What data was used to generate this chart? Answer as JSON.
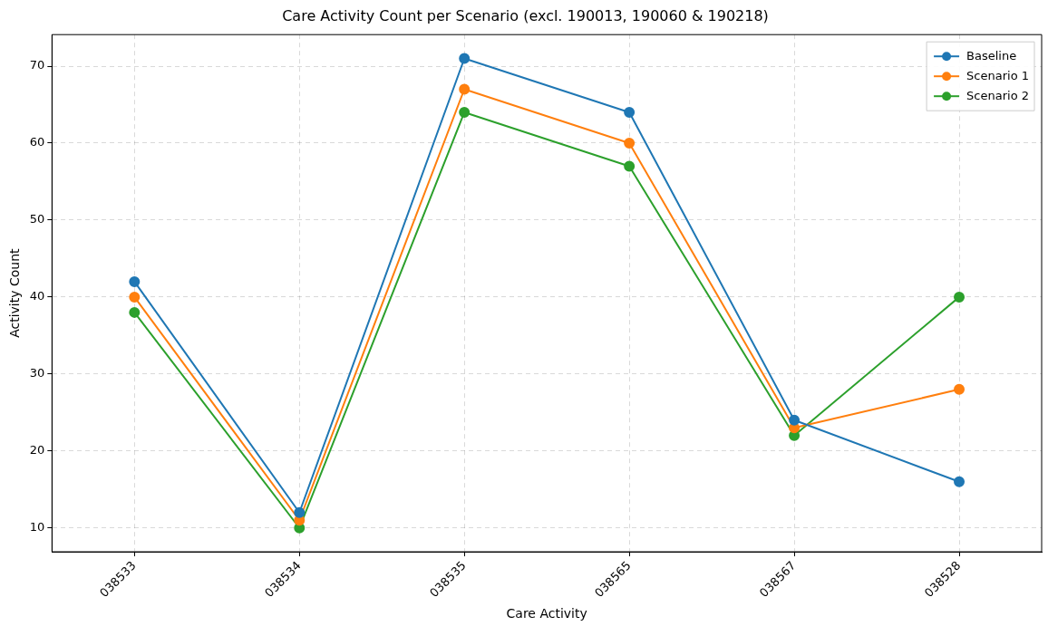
{
  "chart_data": {
    "type": "line",
    "title": "Care Activity Count per Scenario (excl. 190013, 190060 & 190218)",
    "xlabel": "Care Activity",
    "ylabel": "Activity Count",
    "categories": [
      "038533",
      "038534",
      "038535",
      "038565",
      "038567",
      "038528"
    ],
    "series": [
      {
        "name": "Baseline",
        "color": "#1f77b4",
        "values": [
          42,
          12,
          71,
          64,
          24,
          16
        ]
      },
      {
        "name": "Scenario 1",
        "color": "#ff7f0e",
        "values": [
          40,
          11,
          67,
          60,
          23,
          28
        ]
      },
      {
        "name": "Scenario 2",
        "color": "#2ca02c",
        "values": [
          38,
          10,
          64,
          57,
          22,
          40
        ]
      }
    ],
    "ylim": [
      6.9,
      74.1
    ],
    "yticks": [
      10,
      20,
      30,
      40,
      50,
      60,
      70
    ],
    "grid": true,
    "legend": "top right",
    "marker": "circle",
    "line_style": "solid"
  }
}
